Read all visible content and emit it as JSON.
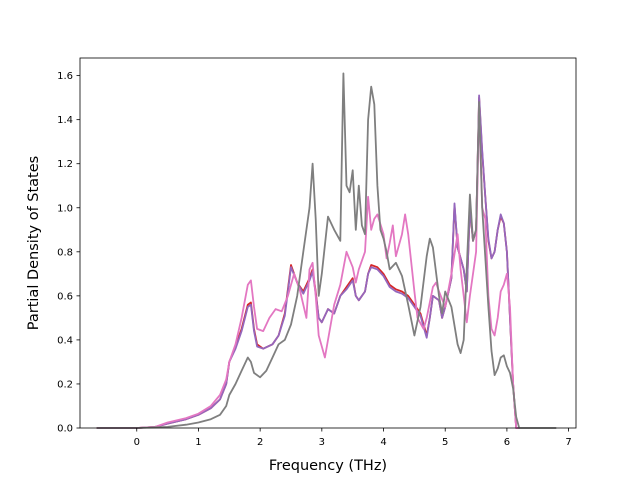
{
  "chart_data": {
    "type": "line",
    "title": "",
    "xlabel": "Frequency (THz)",
    "ylabel": "Partial Density of States",
    "xlim": [
      -0.92,
      7.12
    ],
    "ylim": [
      0.0,
      1.68
    ],
    "xticks": [
      0,
      1,
      2,
      3,
      4,
      5,
      6,
      7
    ],
    "yticks": [
      0.0,
      0.2,
      0.4,
      0.6,
      0.8,
      1.0,
      1.2,
      1.4,
      1.6
    ],
    "xtick_labels": [
      "0",
      "1",
      "2",
      "3",
      "4",
      "5",
      "6",
      "7"
    ],
    "ytick_labels": [
      "0.0",
      "0.2",
      "0.4",
      "0.6",
      "0.8",
      "1.0",
      "1.2",
      "1.4",
      "1.6"
    ],
    "grid": false,
    "legend": "none",
    "series": [
      {
        "color": "#d62728",
        "points": [
          [
            -0.65,
            0.0
          ],
          [
            0.0,
            0.0
          ],
          [
            0.3,
            0.005
          ],
          [
            0.5,
            0.02
          ],
          [
            0.8,
            0.04
          ],
          [
            1.0,
            0.06
          ],
          [
            1.2,
            0.09
          ],
          [
            1.35,
            0.13
          ],
          [
            1.45,
            0.2
          ],
          [
            1.5,
            0.3
          ],
          [
            1.6,
            0.37
          ],
          [
            1.7,
            0.45
          ],
          [
            1.8,
            0.56
          ],
          [
            1.85,
            0.57
          ],
          [
            1.9,
            0.45
          ],
          [
            1.95,
            0.38
          ],
          [
            2.05,
            0.36
          ],
          [
            2.2,
            0.38
          ],
          [
            2.3,
            0.42
          ],
          [
            2.4,
            0.52
          ],
          [
            2.5,
            0.74
          ],
          [
            2.6,
            0.66
          ],
          [
            2.7,
            0.62
          ],
          [
            2.8,
            0.68
          ],
          [
            2.85,
            0.72
          ],
          [
            2.9,
            0.62
          ],
          [
            2.95,
            0.5
          ],
          [
            3.0,
            0.48
          ],
          [
            3.1,
            0.54
          ],
          [
            3.2,
            0.52
          ],
          [
            3.3,
            0.6
          ],
          [
            3.4,
            0.64
          ],
          [
            3.5,
            0.68
          ],
          [
            3.55,
            0.6
          ],
          [
            3.6,
            0.58
          ],
          [
            3.7,
            0.62
          ],
          [
            3.75,
            0.7
          ],
          [
            3.8,
            0.74
          ],
          [
            3.9,
            0.73
          ],
          [
            4.0,
            0.7
          ],
          [
            4.1,
            0.65
          ],
          [
            4.2,
            0.63
          ],
          [
            4.3,
            0.62
          ],
          [
            4.4,
            0.6
          ],
          [
            4.5,
            0.56
          ],
          [
            4.6,
            0.52
          ],
          [
            4.7,
            0.42
          ],
          [
            4.75,
            0.5
          ],
          [
            4.8,
            0.6
          ],
          [
            4.9,
            0.58
          ],
          [
            4.95,
            0.5
          ],
          [
            5.0,
            0.55
          ],
          [
            5.1,
            0.68
          ],
          [
            5.15,
            1.01
          ],
          [
            5.2,
            0.82
          ],
          [
            5.3,
            0.72
          ],
          [
            5.35,
            0.62
          ],
          [
            5.4,
            1.0
          ],
          [
            5.45,
            0.85
          ],
          [
            5.5,
            0.9
          ],
          [
            5.55,
            1.5
          ],
          [
            5.6,
            1.25
          ],
          [
            5.65,
            1.05
          ],
          [
            5.7,
            0.85
          ],
          [
            5.75,
            0.77
          ],
          [
            5.8,
            0.8
          ],
          [
            5.85,
            0.9
          ],
          [
            5.9,
            0.96
          ],
          [
            5.95,
            0.93
          ],
          [
            6.0,
            0.8
          ],
          [
            6.05,
            0.5
          ],
          [
            6.1,
            0.2
          ],
          [
            6.15,
            0.0
          ],
          [
            6.2,
            0.0
          ]
        ]
      },
      {
        "color": "#9467bd",
        "points": [
          [
            -0.65,
            0.0
          ],
          [
            0.0,
            0.0
          ],
          [
            0.3,
            0.005
          ],
          [
            0.5,
            0.02
          ],
          [
            0.8,
            0.04
          ],
          [
            1.0,
            0.06
          ],
          [
            1.2,
            0.09
          ],
          [
            1.35,
            0.13
          ],
          [
            1.45,
            0.2
          ],
          [
            1.5,
            0.3
          ],
          [
            1.6,
            0.36
          ],
          [
            1.7,
            0.44
          ],
          [
            1.8,
            0.55
          ],
          [
            1.85,
            0.56
          ],
          [
            1.9,
            0.44
          ],
          [
            1.95,
            0.37
          ],
          [
            2.05,
            0.36
          ],
          [
            2.2,
            0.38
          ],
          [
            2.3,
            0.42
          ],
          [
            2.4,
            0.51
          ],
          [
            2.5,
            0.73
          ],
          [
            2.6,
            0.66
          ],
          [
            2.7,
            0.61
          ],
          [
            2.8,
            0.67
          ],
          [
            2.85,
            0.71
          ],
          [
            2.9,
            0.61
          ],
          [
            2.95,
            0.5
          ],
          [
            3.0,
            0.48
          ],
          [
            3.1,
            0.54
          ],
          [
            3.2,
            0.52
          ],
          [
            3.3,
            0.6
          ],
          [
            3.4,
            0.63
          ],
          [
            3.5,
            0.67
          ],
          [
            3.55,
            0.6
          ],
          [
            3.6,
            0.58
          ],
          [
            3.7,
            0.62
          ],
          [
            3.75,
            0.7
          ],
          [
            3.8,
            0.73
          ],
          [
            3.9,
            0.72
          ],
          [
            4.0,
            0.69
          ],
          [
            4.1,
            0.64
          ],
          [
            4.2,
            0.62
          ],
          [
            4.3,
            0.61
          ],
          [
            4.4,
            0.59
          ],
          [
            4.5,
            0.55
          ],
          [
            4.6,
            0.51
          ],
          [
            4.7,
            0.41
          ],
          [
            4.75,
            0.5
          ],
          [
            4.8,
            0.6
          ],
          [
            4.9,
            0.58
          ],
          [
            4.95,
            0.5
          ],
          [
            5.0,
            0.55
          ],
          [
            5.1,
            0.68
          ],
          [
            5.15,
            1.02
          ],
          [
            5.2,
            0.82
          ],
          [
            5.3,
            0.72
          ],
          [
            5.35,
            0.62
          ],
          [
            5.4,
            1.0
          ],
          [
            5.45,
            0.85
          ],
          [
            5.5,
            0.9
          ],
          [
            5.55,
            1.51
          ],
          [
            5.6,
            1.26
          ],
          [
            5.65,
            1.05
          ],
          [
            5.7,
            0.86
          ],
          [
            5.75,
            0.77
          ],
          [
            5.8,
            0.8
          ],
          [
            5.85,
            0.9
          ],
          [
            5.9,
            0.97
          ],
          [
            5.95,
            0.93
          ],
          [
            6.0,
            0.8
          ],
          [
            6.05,
            0.5
          ],
          [
            6.1,
            0.2
          ],
          [
            6.15,
            0.0
          ],
          [
            6.2,
            0.0
          ]
        ]
      },
      {
        "color": "#e377c2",
        "points": [
          [
            -0.65,
            0.0
          ],
          [
            0.0,
            0.0
          ],
          [
            0.3,
            0.005
          ],
          [
            0.5,
            0.025
          ],
          [
            0.8,
            0.045
          ],
          [
            1.0,
            0.065
          ],
          [
            1.2,
            0.1
          ],
          [
            1.35,
            0.15
          ],
          [
            1.45,
            0.22
          ],
          [
            1.5,
            0.3
          ],
          [
            1.6,
            0.38
          ],
          [
            1.7,
            0.5
          ],
          [
            1.8,
            0.65
          ],
          [
            1.85,
            0.67
          ],
          [
            1.9,
            0.55
          ],
          [
            1.95,
            0.45
          ],
          [
            2.05,
            0.44
          ],
          [
            2.15,
            0.5
          ],
          [
            2.25,
            0.54
          ],
          [
            2.35,
            0.53
          ],
          [
            2.45,
            0.6
          ],
          [
            2.55,
            0.7
          ],
          [
            2.65,
            0.62
          ],
          [
            2.75,
            0.5
          ],
          [
            2.8,
            0.72
          ],
          [
            2.85,
            0.75
          ],
          [
            2.9,
            0.6
          ],
          [
            2.95,
            0.42
          ],
          [
            3.05,
            0.32
          ],
          [
            3.1,
            0.4
          ],
          [
            3.2,
            0.56
          ],
          [
            3.3,
            0.65
          ],
          [
            3.4,
            0.8
          ],
          [
            3.5,
            0.73
          ],
          [
            3.55,
            0.66
          ],
          [
            3.6,
            0.72
          ],
          [
            3.7,
            0.8
          ],
          [
            3.75,
            1.05
          ],
          [
            3.8,
            0.9
          ],
          [
            3.85,
            0.95
          ],
          [
            3.9,
            0.97
          ],
          [
            4.0,
            0.88
          ],
          [
            4.05,
            0.77
          ],
          [
            4.1,
            0.84
          ],
          [
            4.15,
            0.92
          ],
          [
            4.2,
            0.78
          ],
          [
            4.3,
            0.88
          ],
          [
            4.35,
            0.97
          ],
          [
            4.4,
            0.88
          ],
          [
            4.5,
            0.62
          ],
          [
            4.55,
            0.5
          ],
          [
            4.65,
            0.45
          ],
          [
            4.7,
            0.5
          ],
          [
            4.8,
            0.64
          ],
          [
            4.85,
            0.66
          ],
          [
            4.9,
            0.62
          ],
          [
            5.0,
            0.55
          ],
          [
            5.1,
            0.7
          ],
          [
            5.2,
            0.88
          ],
          [
            5.25,
            0.72
          ],
          [
            5.35,
            0.48
          ],
          [
            5.4,
            0.6
          ],
          [
            5.5,
            0.8
          ],
          [
            5.55,
            1.46
          ],
          [
            5.6,
            1.0
          ],
          [
            5.65,
            0.95
          ],
          [
            5.7,
            0.6
          ],
          [
            5.75,
            0.45
          ],
          [
            5.8,
            0.42
          ],
          [
            5.85,
            0.5
          ],
          [
            5.9,
            0.62
          ],
          [
            5.95,
            0.65
          ],
          [
            6.0,
            0.7
          ],
          [
            6.05,
            0.55
          ],
          [
            6.1,
            0.2
          ],
          [
            6.15,
            0.0
          ],
          [
            6.2,
            0.0
          ]
        ]
      },
      {
        "color": "#7f7f7f",
        "points": [
          [
            -0.65,
            0.0
          ],
          [
            0.0,
            0.0
          ],
          [
            0.5,
            0.005
          ],
          [
            0.8,
            0.015
          ],
          [
            1.0,
            0.025
          ],
          [
            1.2,
            0.04
          ],
          [
            1.35,
            0.06
          ],
          [
            1.45,
            0.1
          ],
          [
            1.5,
            0.15
          ],
          [
            1.6,
            0.2
          ],
          [
            1.7,
            0.26
          ],
          [
            1.8,
            0.32
          ],
          [
            1.85,
            0.3
          ],
          [
            1.9,
            0.25
          ],
          [
            2.0,
            0.23
          ],
          [
            2.1,
            0.26
          ],
          [
            2.2,
            0.32
          ],
          [
            2.3,
            0.38
          ],
          [
            2.4,
            0.4
          ],
          [
            2.5,
            0.47
          ],
          [
            2.6,
            0.6
          ],
          [
            2.7,
            0.8
          ],
          [
            2.8,
            1.0
          ],
          [
            2.85,
            1.2
          ],
          [
            2.9,
            0.95
          ],
          [
            2.95,
            0.6
          ],
          [
            3.0,
            0.7
          ],
          [
            3.1,
            0.96
          ],
          [
            3.2,
            0.9
          ],
          [
            3.3,
            0.85
          ],
          [
            3.35,
            1.61
          ],
          [
            3.4,
            1.1
          ],
          [
            3.45,
            1.07
          ],
          [
            3.5,
            1.17
          ],
          [
            3.55,
            0.9
          ],
          [
            3.6,
            1.1
          ],
          [
            3.65,
            0.92
          ],
          [
            3.7,
            0.88
          ],
          [
            3.75,
            1.4
          ],
          [
            3.8,
            1.55
          ],
          [
            3.85,
            1.47
          ],
          [
            3.9,
            1.1
          ],
          [
            3.95,
            0.9
          ],
          [
            4.0,
            0.86
          ],
          [
            4.05,
            0.8
          ],
          [
            4.1,
            0.72
          ],
          [
            4.2,
            0.75
          ],
          [
            4.3,
            0.69
          ],
          [
            4.4,
            0.56
          ],
          [
            4.5,
            0.42
          ],
          [
            4.6,
            0.55
          ],
          [
            4.7,
            0.78
          ],
          [
            4.75,
            0.86
          ],
          [
            4.8,
            0.82
          ],
          [
            4.9,
            0.6
          ],
          [
            4.95,
            0.52
          ],
          [
            5.0,
            0.62
          ],
          [
            5.1,
            0.55
          ],
          [
            5.2,
            0.38
          ],
          [
            5.25,
            0.34
          ],
          [
            5.3,
            0.4
          ],
          [
            5.4,
            1.06
          ],
          [
            5.45,
            0.85
          ],
          [
            5.5,
            0.9
          ],
          [
            5.55,
            1.48
          ],
          [
            5.6,
            1.0
          ],
          [
            5.7,
            0.55
          ],
          [
            5.75,
            0.35
          ],
          [
            5.8,
            0.24
          ],
          [
            5.85,
            0.27
          ],
          [
            5.9,
            0.32
          ],
          [
            5.95,
            0.33
          ],
          [
            6.0,
            0.28
          ],
          [
            6.05,
            0.25
          ],
          [
            6.1,
            0.18
          ],
          [
            6.15,
            0.05
          ],
          [
            6.2,
            0.0
          ],
          [
            6.8,
            0.0
          ]
        ]
      }
    ]
  }
}
